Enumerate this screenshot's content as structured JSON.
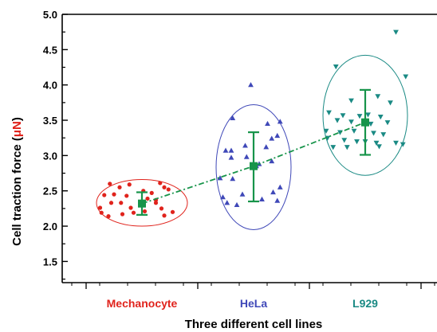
{
  "chart_data": {
    "type": "scatter",
    "title": "",
    "xlabel": "Three different cell lines",
    "ylabel": {
      "prefix": "Cell traction force (",
      "unit": "μN",
      "suffix": ")"
    },
    "ylim": [
      1.2,
      5.0
    ],
    "yticks": [
      "1.5",
      "2.0",
      "2.5",
      "3.0",
      "3.5",
      "4.0",
      "4.5",
      "5.0"
    ],
    "grid": false,
    "legend": "none",
    "unit_color": "#e0231c",
    "categories": [
      {
        "label": "Mechanocyte",
        "color": "#e0231c",
        "marker": "circle",
        "mean": 2.32,
        "error": [
          2.16,
          2.48
        ],
        "points": [
          [
            -0.23,
            2.6
          ],
          [
            -0.16,
            2.55
          ],
          [
            -0.09,
            2.59
          ],
          [
            0.01,
            2.5
          ],
          [
            0.07,
            2.47
          ],
          [
            0.13,
            2.61
          ],
          [
            0.19,
            2.52
          ],
          [
            -0.27,
            2.44
          ],
          [
            -0.2,
            2.45
          ],
          [
            -0.11,
            2.43
          ],
          [
            0.04,
            2.39
          ],
          [
            0.1,
            2.37
          ],
          [
            0.16,
            2.55
          ],
          [
            -0.3,
            2.26
          ],
          [
            -0.22,
            2.33
          ],
          [
            -0.15,
            2.33
          ],
          [
            -0.08,
            2.26
          ],
          [
            0.1,
            2.33
          ],
          [
            0.14,
            2.25
          ],
          [
            -0.29,
            2.19
          ],
          [
            -0.24,
            2.14
          ],
          [
            -0.14,
            2.17
          ],
          [
            -0.06,
            2.19
          ],
          [
            0.02,
            2.21
          ],
          [
            0.16,
            2.15
          ],
          [
            0.22,
            2.2
          ]
        ]
      },
      {
        "label": "HeLa",
        "color": "#3f48b8",
        "marker": "triangle-up",
        "mean": 2.85,
        "error": [
          2.35,
          3.33
        ],
        "points": [
          [
            -0.02,
            4.0
          ],
          [
            -0.15,
            3.53
          ],
          [
            0.1,
            3.45
          ],
          [
            0.19,
            3.48
          ],
          [
            0.13,
            3.24
          ],
          [
            0.17,
            3.28
          ],
          [
            -0.2,
            3.07
          ],
          [
            -0.16,
            3.07
          ],
          [
            -0.06,
            3.14
          ],
          [
            0.09,
            3.12
          ],
          [
            -0.16,
            2.97
          ],
          [
            -0.05,
            2.98
          ],
          [
            0.04,
            2.88
          ],
          [
            0.13,
            2.92
          ],
          [
            0.02,
            2.85
          ],
          [
            -0.24,
            2.68
          ],
          [
            -0.15,
            2.67
          ],
          [
            0.19,
            2.55
          ],
          [
            -0.22,
            2.41
          ],
          [
            -0.08,
            2.45
          ],
          [
            0.14,
            2.48
          ],
          [
            -0.19,
            2.33
          ],
          [
            -0.12,
            2.3
          ],
          [
            0.06,
            2.38
          ],
          [
            0.17,
            2.36
          ]
        ]
      },
      {
        "label": "L929",
        "color": "#1a8a84",
        "marker": "triangle-down",
        "mean": 3.47,
        "error": [
          3.01,
          3.93
        ],
        "points": [
          [
            0.22,
            4.75
          ],
          [
            -0.21,
            4.26
          ],
          [
            0.29,
            4.12
          ],
          [
            0.09,
            3.84
          ],
          [
            -0.1,
            3.78
          ],
          [
            0.18,
            3.75
          ],
          [
            -0.26,
            3.61
          ],
          [
            -0.16,
            3.57
          ],
          [
            -0.04,
            3.56
          ],
          [
            0.02,
            3.58
          ],
          [
            0.11,
            3.55
          ],
          [
            -0.2,
            3.5
          ],
          [
            -0.1,
            3.48
          ],
          [
            0.04,
            3.45
          ],
          [
            0.16,
            3.47
          ],
          [
            -0.28,
            3.35
          ],
          [
            -0.18,
            3.33
          ],
          [
            -0.08,
            3.35
          ],
          [
            0.06,
            3.32
          ],
          [
            0.13,
            3.3
          ],
          [
            -0.27,
            3.25
          ],
          [
            -0.15,
            3.22
          ],
          [
            -0.06,
            3.2
          ],
          [
            0.0,
            3.2
          ],
          [
            0.08,
            3.18
          ],
          [
            0.22,
            3.18
          ],
          [
            0.27,
            3.16
          ],
          [
            -0.23,
            3.12
          ],
          [
            -0.13,
            3.12
          ],
          [
            0.1,
            3.13
          ]
        ]
      }
    ]
  }
}
